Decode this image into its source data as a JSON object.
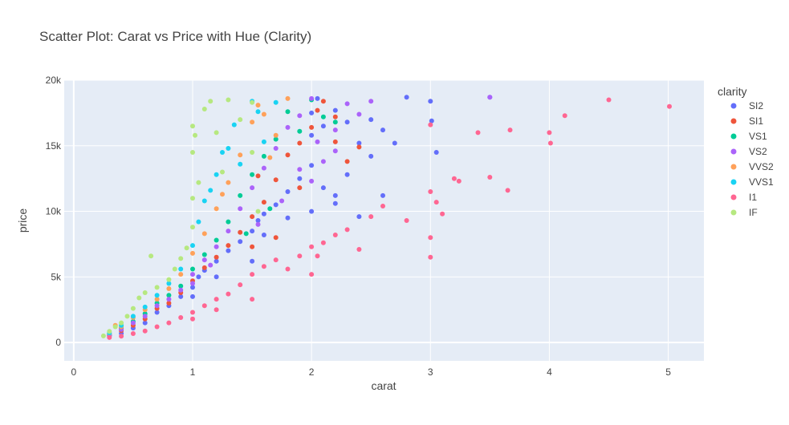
{
  "chart_data": {
    "type": "scatter",
    "title": "Scatter Plot: Carat vs Price with Hue (Clarity)",
    "xlabel": "carat",
    "ylabel": "price",
    "xlim": [
      -0.08,
      5.3
    ],
    "ylim": [
      -1400,
      20000
    ],
    "x_ticks": [
      {
        "value": 0,
        "label": "0"
      },
      {
        "value": 1,
        "label": "1"
      },
      {
        "value": 2,
        "label": "2"
      },
      {
        "value": 3,
        "label": "3"
      },
      {
        "value": 4,
        "label": "4"
      },
      {
        "value": 5,
        "label": "5"
      }
    ],
    "y_ticks": [
      {
        "value": 0,
        "label": "0"
      },
      {
        "value": 5000,
        "label": "5k"
      },
      {
        "value": 10000,
        "label": "10k"
      },
      {
        "value": 15000,
        "label": "15k"
      },
      {
        "value": 20000,
        "label": "20k"
      }
    ],
    "grid": true,
    "legend": {
      "title": "clarity",
      "position": "right"
    },
    "series": [
      {
        "name": "SI2",
        "color": "#636EFA",
        "points": [
          [
            0.3,
            500
          ],
          [
            0.4,
            700
          ],
          [
            0.5,
            1100
          ],
          [
            0.6,
            1500
          ],
          [
            0.7,
            2300
          ],
          [
            0.8,
            2800
          ],
          [
            0.9,
            3500
          ],
          [
            1.0,
            4200
          ],
          [
            1.05,
            5000
          ],
          [
            1.1,
            5500
          ],
          [
            1.2,
            6200
          ],
          [
            1.3,
            7000
          ],
          [
            1.4,
            7700
          ],
          [
            1.5,
            8500
          ],
          [
            1.55,
            9300
          ],
          [
            1.6,
            9800
          ],
          [
            1.7,
            10500
          ],
          [
            1.8,
            11500
          ],
          [
            1.9,
            12500
          ],
          [
            2.0,
            13500
          ],
          [
            2.0,
            15800
          ],
          [
            2.0,
            17500
          ],
          [
            2.05,
            18600
          ],
          [
            2.1,
            16500
          ],
          [
            2.1,
            11800
          ],
          [
            2.2,
            17700
          ],
          [
            2.3,
            16800
          ],
          [
            2.4,
            15200
          ],
          [
            2.5,
            14200
          ],
          [
            2.5,
            17000
          ],
          [
            2.6,
            16200
          ],
          [
            2.7,
            15200
          ],
          [
            2.8,
            18700
          ],
          [
            3.0,
            18400
          ],
          [
            3.01,
            16900
          ],
          [
            3.05,
            14500
          ],
          [
            3.5,
            18700
          ],
          [
            2.0,
            10000
          ],
          [
            2.2,
            10600
          ],
          [
            1.5,
            6200
          ],
          [
            1.6,
            8200
          ],
          [
            1.8,
            9500
          ],
          [
            2.4,
            9600
          ],
          [
            2.2,
            11200
          ],
          [
            1.0,
            3500
          ],
          [
            1.2,
            5000
          ],
          [
            2.3,
            12800
          ],
          [
            2.6,
            11200
          ]
        ]
      },
      {
        "name": "SI1",
        "color": "#EF553B",
        "points": [
          [
            0.3,
            550
          ],
          [
            0.4,
            900
          ],
          [
            0.5,
            1300
          ],
          [
            0.6,
            1800
          ],
          [
            0.7,
            2600
          ],
          [
            0.8,
            3000
          ],
          [
            0.9,
            3800
          ],
          [
            1.0,
            4700
          ],
          [
            1.1,
            5700
          ],
          [
            1.2,
            6500
          ],
          [
            1.3,
            7400
          ],
          [
            1.4,
            8400
          ],
          [
            1.5,
            9600
          ],
          [
            1.6,
            10700
          ],
          [
            1.7,
            12400
          ],
          [
            1.8,
            14300
          ],
          [
            1.9,
            15200
          ],
          [
            2.0,
            16400
          ],
          [
            2.05,
            17700
          ],
          [
            2.1,
            18400
          ],
          [
            2.2,
            17200
          ],
          [
            2.3,
            13800
          ],
          [
            2.4,
            14900
          ],
          [
            1.5,
            7300
          ],
          [
            1.7,
            8000
          ],
          [
            1.55,
            12700
          ],
          [
            1.9,
            11800
          ],
          [
            2.2,
            15300
          ]
        ]
      },
      {
        "name": "VS1",
        "color": "#00CC96",
        "points": [
          [
            0.3,
            600
          ],
          [
            0.4,
            1100
          ],
          [
            0.5,
            1600
          ],
          [
            0.6,
            2200
          ],
          [
            0.7,
            3000
          ],
          [
            0.8,
            3600
          ],
          [
            0.9,
            4300
          ],
          [
            1.0,
            5600
          ],
          [
            1.1,
            6700
          ],
          [
            1.2,
            7800
          ],
          [
            1.3,
            9200
          ],
          [
            1.4,
            11200
          ],
          [
            1.5,
            12800
          ],
          [
            1.6,
            14200
          ],
          [
            1.7,
            15500
          ],
          [
            1.8,
            17600
          ],
          [
            1.9,
            16100
          ],
          [
            2.0,
            18500
          ],
          [
            2.1,
            17200
          ],
          [
            2.2,
            16800
          ],
          [
            1.65,
            10200
          ],
          [
            1.45,
            8300
          ]
        ]
      },
      {
        "name": "VS2",
        "color": "#AB63FA",
        "points": [
          [
            0.3,
            580
          ],
          [
            0.4,
            1000
          ],
          [
            0.5,
            1500
          ],
          [
            0.6,
            2000
          ],
          [
            0.7,
            2800
          ],
          [
            0.8,
            3300
          ],
          [
            0.9,
            4000
          ],
          [
            1.0,
            5200
          ],
          [
            1.1,
            6300
          ],
          [
            1.2,
            7300
          ],
          [
            1.3,
            8500
          ],
          [
            1.4,
            10200
          ],
          [
            1.5,
            11800
          ],
          [
            1.6,
            13300
          ],
          [
            1.7,
            14800
          ],
          [
            1.8,
            16400
          ],
          [
            1.9,
            17300
          ],
          [
            2.0,
            18600
          ],
          [
            2.05,
            15300
          ],
          [
            2.1,
            13800
          ],
          [
            2.2,
            16200
          ],
          [
            2.3,
            18200
          ],
          [
            2.4,
            17400
          ],
          [
            2.5,
            18400
          ],
          [
            2.0,
            12300
          ],
          [
            1.75,
            10800
          ],
          [
            1.55,
            9000
          ],
          [
            3.5,
            18700
          ],
          [
            1.0,
            4500
          ],
          [
            1.15,
            5900
          ],
          [
            2.2,
            14600
          ],
          [
            1.9,
            13200
          ]
        ]
      },
      {
        "name": "VVS2",
        "color": "#FFA15A",
        "points": [
          [
            0.3,
            700
          ],
          [
            0.35,
            1300
          ],
          [
            0.4,
            1200
          ],
          [
            0.5,
            1900
          ],
          [
            0.6,
            2500
          ],
          [
            0.7,
            3300
          ],
          [
            0.8,
            4100
          ],
          [
            0.9,
            5200
          ],
          [
            1.0,
            6800
          ],
          [
            1.1,
            8300
          ],
          [
            1.2,
            10200
          ],
          [
            1.3,
            12200
          ],
          [
            1.4,
            14300
          ],
          [
            1.5,
            16800
          ],
          [
            1.55,
            18100
          ],
          [
            1.6,
            17400
          ],
          [
            1.7,
            15800
          ],
          [
            1.8,
            18600
          ],
          [
            1.65,
            14100
          ],
          [
            1.25,
            11300
          ]
        ]
      },
      {
        "name": "VVS1",
        "color": "#19D3F3",
        "points": [
          [
            0.3,
            720
          ],
          [
            0.4,
            1300
          ],
          [
            0.5,
            2000
          ],
          [
            0.6,
            2700
          ],
          [
            0.7,
            3600
          ],
          [
            0.8,
            4500
          ],
          [
            0.9,
            5600
          ],
          [
            1.0,
            7400
          ],
          [
            1.05,
            9200
          ],
          [
            1.1,
            10800
          ],
          [
            1.2,
            12800
          ],
          [
            1.3,
            14800
          ],
          [
            1.35,
            16600
          ],
          [
            1.5,
            18400
          ],
          [
            1.55,
            17600
          ],
          [
            1.6,
            15300
          ],
          [
            1.7,
            18300
          ],
          [
            1.4,
            13600
          ],
          [
            1.15,
            11600
          ],
          [
            1.25,
            14500
          ]
        ]
      },
      {
        "name": "I1",
        "color": "#FF6692",
        "points": [
          [
            0.3,
            380
          ],
          [
            0.4,
            480
          ],
          [
            0.5,
            680
          ],
          [
            0.6,
            880
          ],
          [
            0.7,
            1200
          ],
          [
            0.8,
            1500
          ],
          [
            0.9,
            1900
          ],
          [
            1.0,
            2300
          ],
          [
            1.1,
            2800
          ],
          [
            1.2,
            3300
          ],
          [
            1.3,
            3700
          ],
          [
            1.4,
            4400
          ],
          [
            1.5,
            5200
          ],
          [
            1.5,
            3300
          ],
          [
            1.6,
            5800
          ],
          [
            1.7,
            6300
          ],
          [
            1.8,
            5600
          ],
          [
            1.9,
            6600
          ],
          [
            2.0,
            7300
          ],
          [
            2.05,
            6600
          ],
          [
            2.1,
            7600
          ],
          [
            2.2,
            8200
          ],
          [
            2.3,
            8600
          ],
          [
            2.5,
            9600
          ],
          [
            2.6,
            10400
          ],
          [
            2.8,
            9300
          ],
          [
            3.0,
            8000
          ],
          [
            3.0,
            6500
          ],
          [
            3.0,
            11500
          ],
          [
            3.05,
            10700
          ],
          [
            3.1,
            9800
          ],
          [
            3.2,
            12500
          ],
          [
            3.24,
            12300
          ],
          [
            3.4,
            16000
          ],
          [
            3.5,
            12600
          ],
          [
            3.65,
            11600
          ],
          [
            3.67,
            16200
          ],
          [
            4.0,
            16000
          ],
          [
            4.01,
            15200
          ],
          [
            4.13,
            17300
          ],
          [
            4.5,
            18500
          ],
          [
            5.01,
            18000
          ],
          [
            1.0,
            1800
          ],
          [
            1.2,
            2500
          ],
          [
            2.0,
            5200
          ],
          [
            2.4,
            7100
          ],
          [
            3.0,
            16600
          ]
        ]
      },
      {
        "name": "IF",
        "color": "#B6E880",
        "points": [
          [
            0.25,
            500
          ],
          [
            0.3,
            850
          ],
          [
            0.35,
            1200
          ],
          [
            0.4,
            1500
          ],
          [
            0.45,
            2000
          ],
          [
            0.5,
            2600
          ],
          [
            0.55,
            3400
          ],
          [
            0.6,
            3800
          ],
          [
            0.65,
            6600
          ],
          [
            0.7,
            4200
          ],
          [
            0.8,
            4800
          ],
          [
            0.85,
            5600
          ],
          [
            0.9,
            6400
          ],
          [
            0.95,
            7200
          ],
          [
            1.0,
            8800
          ],
          [
            1.0,
            11000
          ],
          [
            1.0,
            14500
          ],
          [
            1.0,
            16500
          ],
          [
            1.02,
            15800
          ],
          [
            1.05,
            12200
          ],
          [
            1.1,
            17800
          ],
          [
            1.15,
            18400
          ],
          [
            1.2,
            16000
          ],
          [
            1.3,
            18500
          ],
          [
            1.4,
            17000
          ],
          [
            1.5,
            18300
          ],
          [
            1.5,
            14500
          ],
          [
            1.55,
            10000
          ],
          [
            1.25,
            13000
          ]
        ]
      }
    ]
  }
}
